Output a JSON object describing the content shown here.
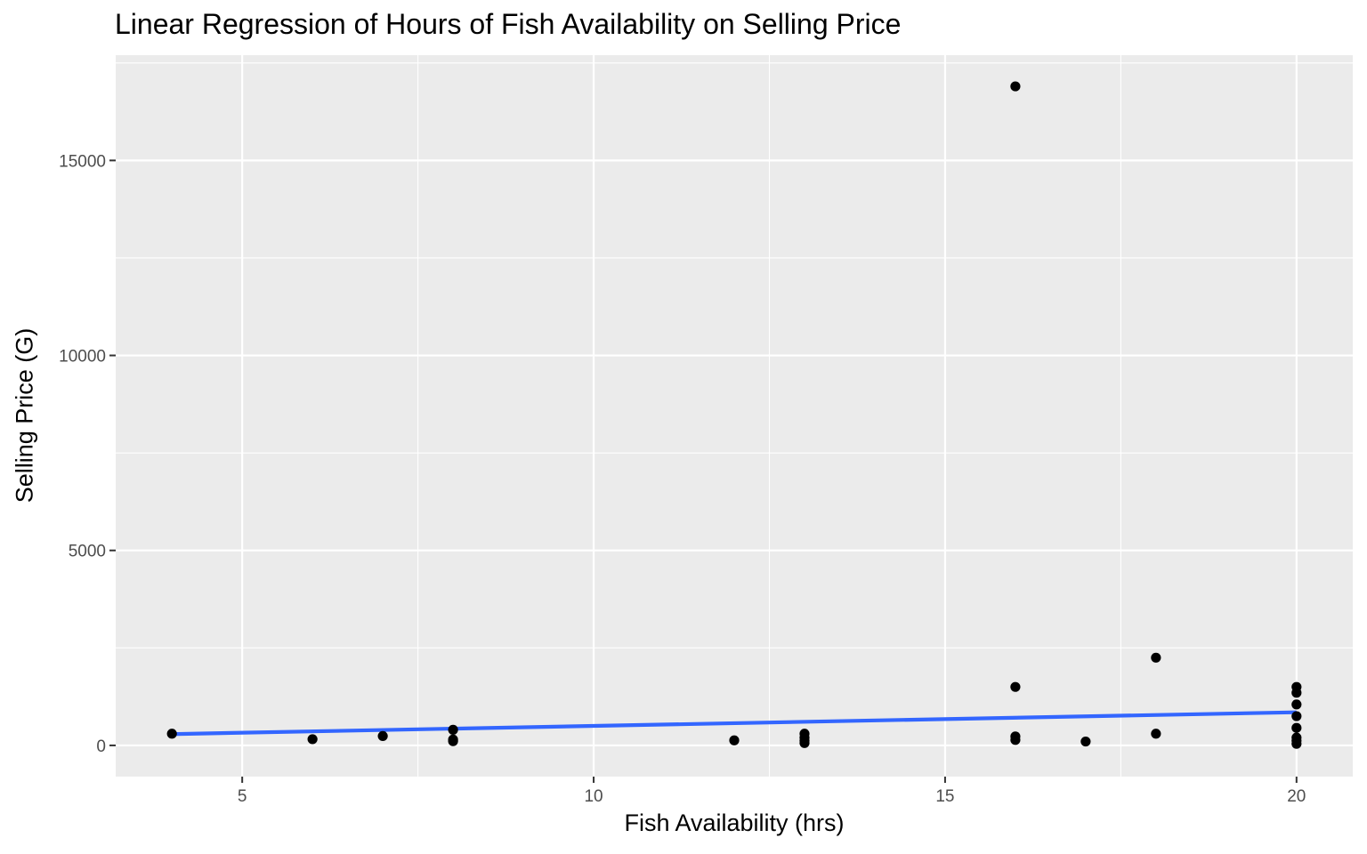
{
  "chart_data": {
    "type": "scatter",
    "title": "Linear Regression of Hours of Fish Availability on Selling Price",
    "xlabel": "Fish Availability (hrs)",
    "ylabel": "Selling Price (G)",
    "xlim": [
      3.2,
      20.8
    ],
    "ylim": [
      -800,
      17700
    ],
    "x_ticks": [
      5,
      10,
      15,
      20
    ],
    "x_tick_labels": [
      "5",
      "10",
      "15",
      "20"
    ],
    "y_ticks": [
      0,
      5000,
      10000,
      15000
    ],
    "y_tick_labels": [
      "0",
      "5000",
      "10000",
      "15000"
    ],
    "grid": true,
    "legend": "none",
    "points": [
      {
        "x": 4,
        "y": 300
      },
      {
        "x": 6,
        "y": 160
      },
      {
        "x": 7,
        "y": 240
      },
      {
        "x": 8,
        "y": 400
      },
      {
        "x": 8,
        "y": 150
      },
      {
        "x": 8,
        "y": 110
      },
      {
        "x": 12,
        "y": 130
      },
      {
        "x": 13,
        "y": 300
      },
      {
        "x": 13,
        "y": 200
      },
      {
        "x": 13,
        "y": 120
      },
      {
        "x": 13,
        "y": 60
      },
      {
        "x": 16,
        "y": 16900
      },
      {
        "x": 16,
        "y": 1500
      },
      {
        "x": 16,
        "y": 230
      },
      {
        "x": 16,
        "y": 140
      },
      {
        "x": 17,
        "y": 100
      },
      {
        "x": 18,
        "y": 2250
      },
      {
        "x": 18,
        "y": 300
      },
      {
        "x": 20,
        "y": 1500
      },
      {
        "x": 20,
        "y": 1350
      },
      {
        "x": 20,
        "y": 1050
      },
      {
        "x": 20,
        "y": 750
      },
      {
        "x": 20,
        "y": 450
      },
      {
        "x": 20,
        "y": 200
      },
      {
        "x": 20,
        "y": 120
      },
      {
        "x": 20,
        "y": 40
      }
    ],
    "regression_line": {
      "x": [
        4,
        20
      ],
      "y": [
        290,
        850
      ]
    },
    "colors": {
      "points": "#000000",
      "line": "#3366ff",
      "panel": "#ebebeb",
      "grid": "#ffffff"
    }
  }
}
